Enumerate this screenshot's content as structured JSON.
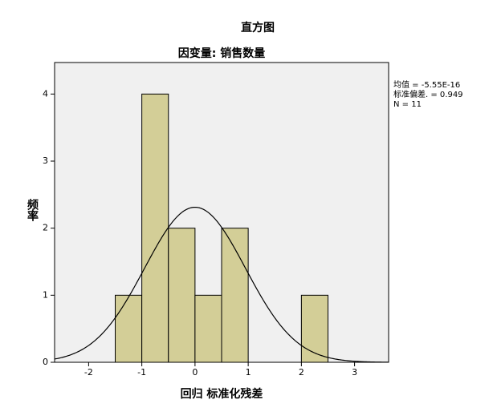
{
  "chart_data": {
    "type": "histogram",
    "title": "直方图",
    "subtitle": "因变量: 销售数量",
    "x_label": "回归 标准化残差",
    "y_label": "频率",
    "bins": [
      -1.5,
      -1,
      -0.5,
      0,
      0.5,
      1,
      1.5,
      2,
      2.5
    ],
    "counts": [
      1,
      4,
      2,
      1,
      2,
      0,
      0,
      1
    ],
    "color": "#d3ce97",
    "xlim": [
      -2.64,
      3.64
    ],
    "ylim": [
      0,
      4.47
    ],
    "xticks": [
      -2,
      -1,
      0,
      1,
      2,
      3
    ],
    "yticks": [
      0,
      1,
      2,
      3,
      4
    ],
    "normal_curve": true,
    "stats": {
      "mean": {
        "value": -5.55e-16,
        "label": "均值 = -5.55E-16"
      },
      "sd": {
        "value": 0.949,
        "label": "标准偏差. = 0.949"
      },
      "n": {
        "value": 11,
        "label": "N = 11"
      }
    }
  }
}
